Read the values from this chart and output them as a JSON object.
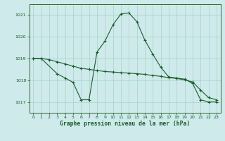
{
  "title": "Graphe pression niveau de la mer (hPa)",
  "background_color": "#ceeaea",
  "grid_color": "#aacfcf",
  "line_color": "#1a5c2a",
  "spine_color": "#336633",
  "xlim": [
    -0.5,
    23.5
  ],
  "ylim": [
    1016.5,
    1021.5
  ],
  "yticks": [
    1017,
    1018,
    1019,
    1020,
    1021
  ],
  "xticks": [
    0,
    1,
    2,
    3,
    4,
    5,
    6,
    7,
    8,
    9,
    10,
    11,
    12,
    13,
    14,
    15,
    16,
    17,
    18,
    19,
    20,
    21,
    22,
    23
  ],
  "series1_x": [
    0,
    1,
    3,
    4,
    5,
    6,
    7,
    8,
    9,
    10,
    11,
    12,
    13,
    14,
    15,
    16,
    17,
    18,
    19,
    20,
    21,
    22,
    23
  ],
  "series1_y": [
    1019.0,
    1019.0,
    1018.3,
    1018.1,
    1017.9,
    1017.1,
    1017.1,
    1019.3,
    1019.8,
    1020.55,
    1021.05,
    1021.1,
    1020.7,
    1019.85,
    1019.2,
    1018.6,
    1018.15,
    1018.1,
    1018.05,
    1017.85,
    1017.1,
    1017.0,
    1017.0
  ],
  "series2_x": [
    0,
    1,
    2,
    3,
    4,
    5,
    6,
    7,
    8,
    9,
    10,
    11,
    12,
    13,
    14,
    15,
    16,
    17,
    18,
    19,
    20,
    21,
    22,
    23
  ],
  "series2_y": [
    1019.0,
    1019.0,
    1018.95,
    1018.85,
    1018.75,
    1018.65,
    1018.55,
    1018.5,
    1018.45,
    1018.4,
    1018.38,
    1018.35,
    1018.33,
    1018.3,
    1018.27,
    1018.22,
    1018.18,
    1018.12,
    1018.08,
    1018.02,
    1017.92,
    1017.55,
    1017.2,
    1017.1
  ]
}
